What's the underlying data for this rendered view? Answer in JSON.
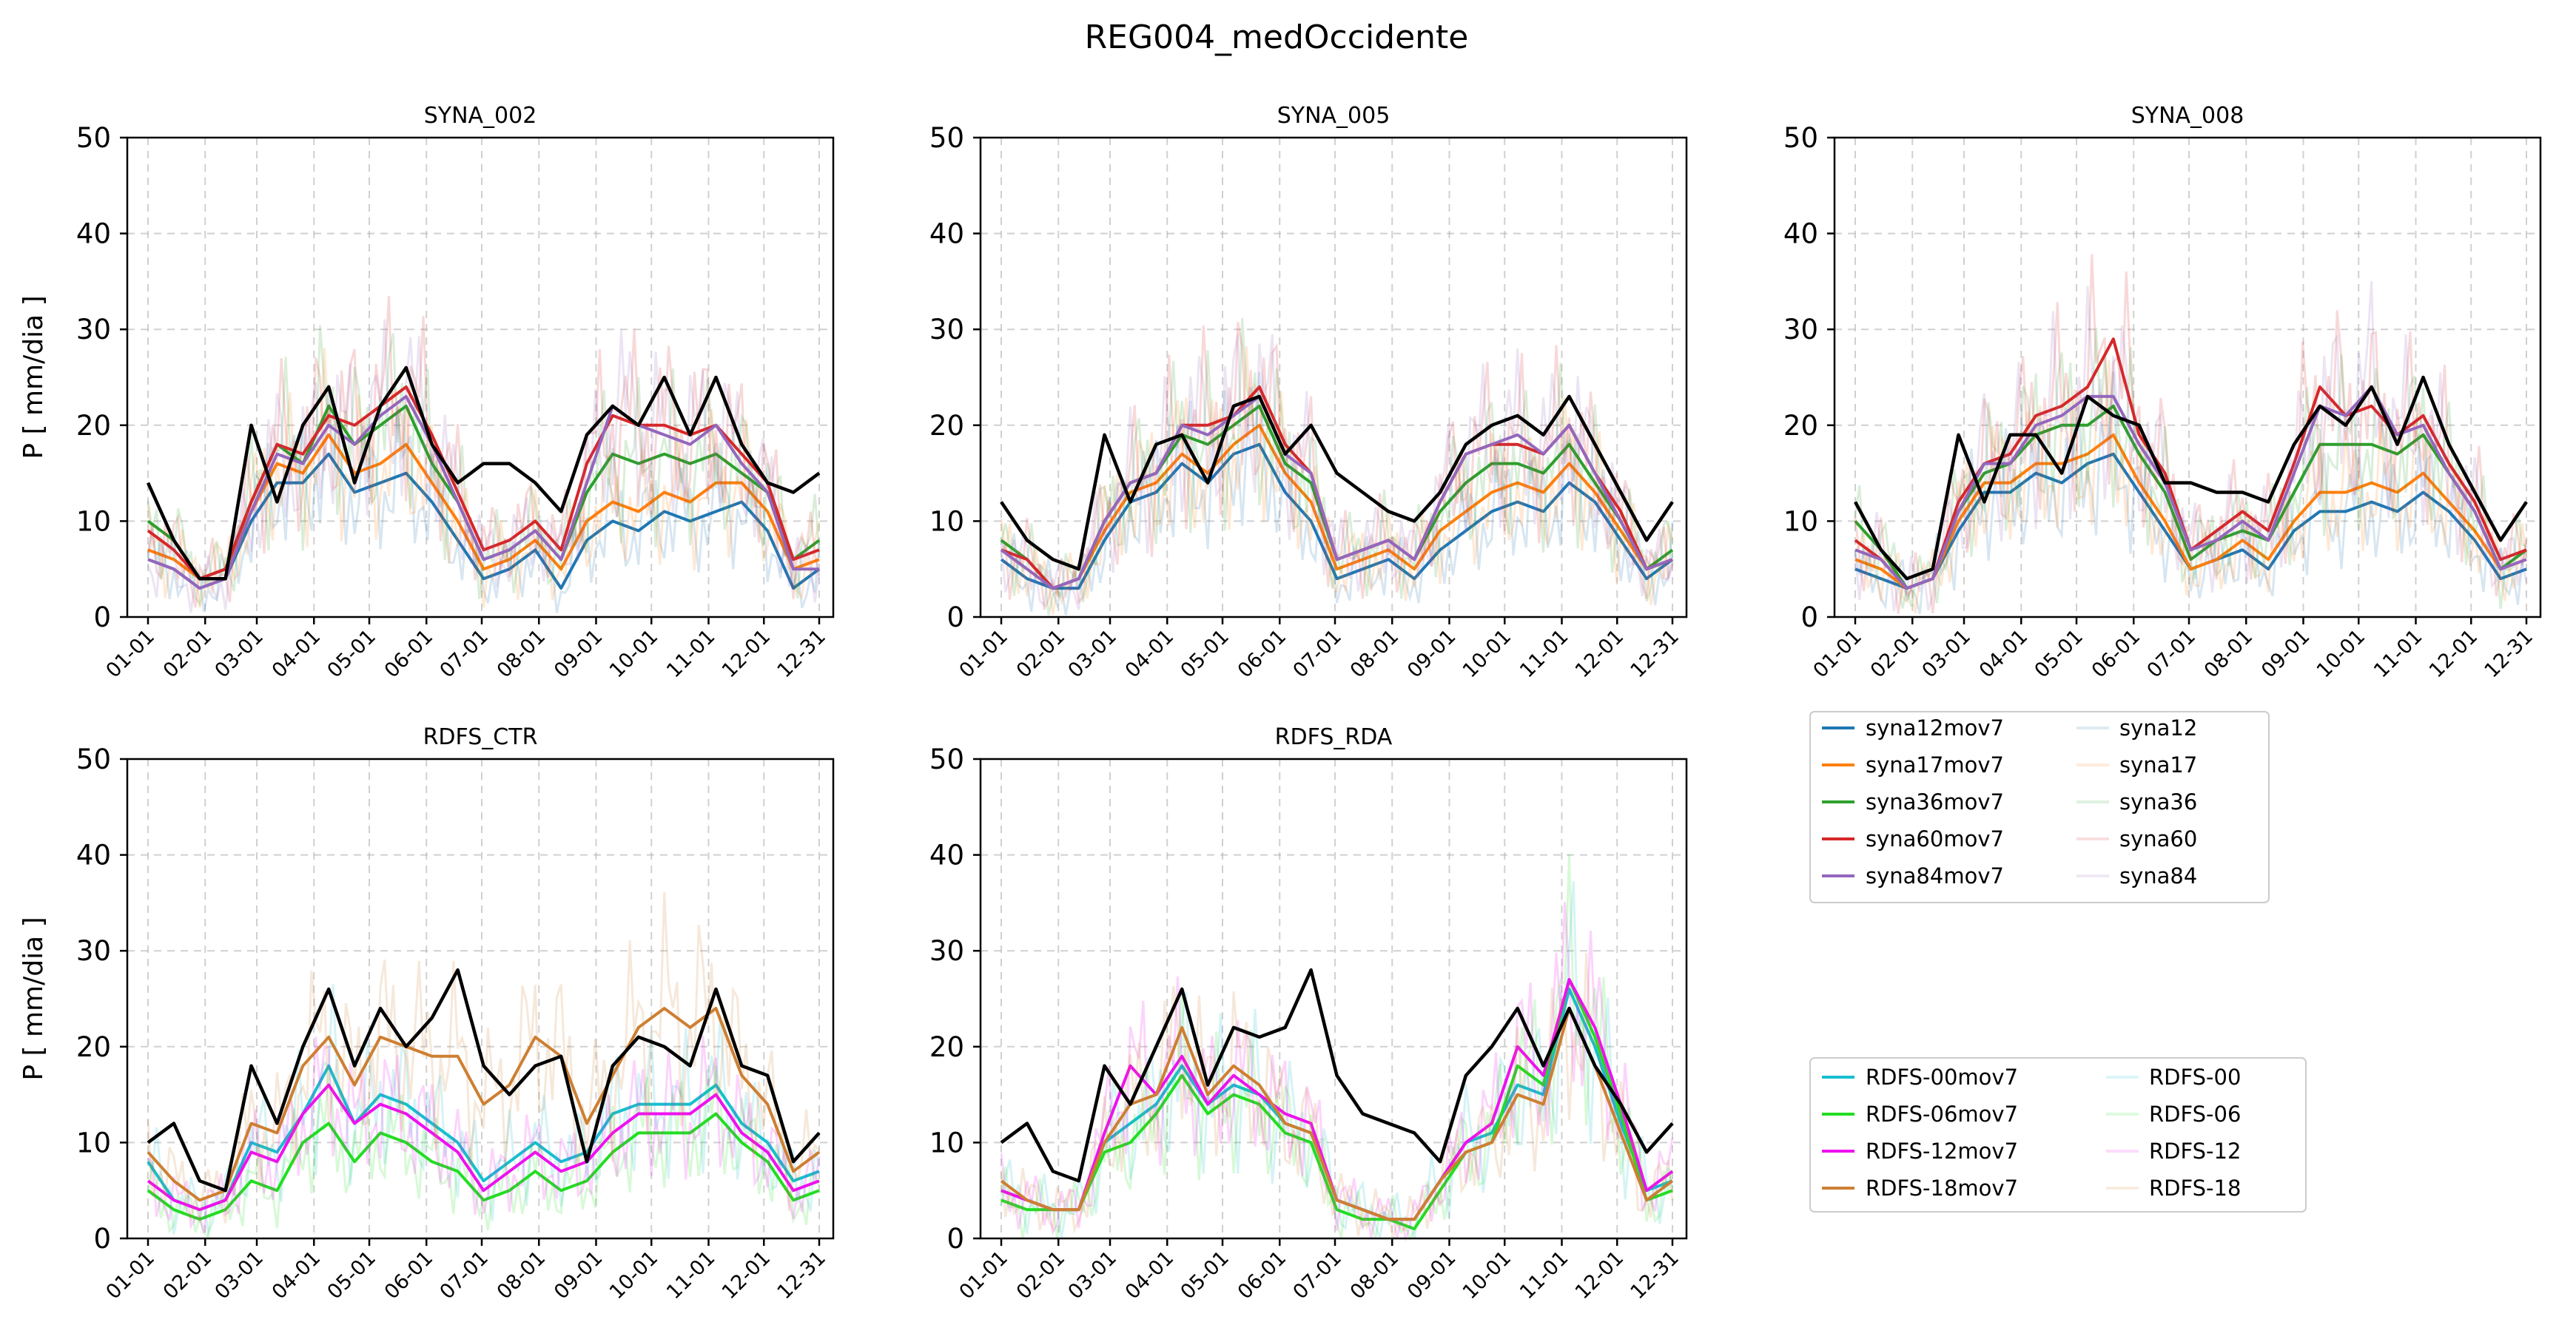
{
  "suptitle": "REG004_medOccidente",
  "axes": {
    "ylabel": "P [ mm/dia ]",
    "yticks": [
      "0",
      "10",
      "20",
      "30",
      "40",
      "50"
    ],
    "xticks": [
      "01-01",
      "02-01",
      "03-01",
      "04-01",
      "05-01",
      "06-01",
      "07-01",
      "08-01",
      "09-01",
      "10-01",
      "11-01",
      "12-01",
      "12-31"
    ]
  },
  "legend_syna": {
    "col1": [
      "syna12mov7",
      "syna17mov7",
      "syna36mov7",
      "syna60mov7",
      "syna84mov7"
    ],
    "col2": [
      "syna12",
      "syna17",
      "syna36",
      "syna60",
      "syna84"
    ]
  },
  "legend_rdfs": {
    "col1": [
      "RDFS-00mov7",
      "RDFS-06mov7",
      "RDFS-12mov7",
      "RDFS-18mov7"
    ],
    "col2": [
      "RDFS-00",
      "RDFS-06",
      "RDFS-12",
      "RDFS-18"
    ]
  },
  "chart_data": [
    {
      "type": "line",
      "title": "SYNA_002",
      "xlabel": "",
      "ylabel": "P [ mm/dia ]",
      "ylim": [
        0,
        50
      ],
      "x_range": [
        "01-01",
        "12-31"
      ],
      "grid": true,
      "colors": [
        "#1f77b4",
        "#ff7f0e",
        "#2ca02c",
        "#d62728",
        "#9467bd"
      ],
      "black_line": [
        14,
        8,
        4,
        4,
        20,
        12,
        20,
        24,
        14,
        22,
        26,
        18,
        14,
        16,
        16,
        14,
        11,
        19,
        22,
        20,
        25,
        19,
        25,
        18,
        14,
        13,
        15
      ],
      "series": [
        {
          "name": "syna12mov7",
          "values": [
            6,
            5,
            3,
            4,
            10,
            14,
            14,
            17,
            13,
            14,
            15,
            12,
            8,
            4,
            5,
            7,
            3,
            8,
            10,
            9,
            11,
            10,
            11,
            12,
            9,
            3,
            5
          ]
        },
        {
          "name": "syna17mov7",
          "values": [
            7,
            6,
            4,
            5,
            11,
            16,
            15,
            19,
            15,
            16,
            18,
            14,
            10,
            5,
            6,
            8,
            5,
            10,
            12,
            11,
            13,
            12,
            14,
            14,
            11,
            5,
            6
          ]
        },
        {
          "name": "syna36mov7",
          "values": [
            10,
            8,
            4,
            5,
            12,
            18,
            16,
            22,
            18,
            20,
            22,
            16,
            12,
            6,
            7,
            9,
            6,
            13,
            17,
            16,
            17,
            16,
            17,
            15,
            13,
            6,
            8
          ]
        },
        {
          "name": "syna60mov7",
          "values": [
            9,
            7,
            4,
            5,
            12,
            18,
            17,
            21,
            20,
            22,
            24,
            19,
            13,
            7,
            8,
            10,
            7,
            16,
            21,
            20,
            20,
            19,
            20,
            17,
            14,
            6,
            7
          ]
        },
        {
          "name": "syna84mov7",
          "values": [
            6,
            5,
            3,
            4,
            11,
            17,
            16,
            20,
            18,
            21,
            23,
            18,
            12,
            6,
            7,
            9,
            6,
            14,
            22,
            20,
            19,
            18,
            20,
            16,
            13,
            5,
            5
          ]
        }
      ]
    },
    {
      "type": "line",
      "title": "SYNA_005",
      "xlabel": "",
      "ylabel": "",
      "ylim": [
        0,
        50
      ],
      "x_range": [
        "01-01",
        "12-31"
      ],
      "grid": true,
      "colors": [
        "#1f77b4",
        "#ff7f0e",
        "#2ca02c",
        "#d62728",
        "#9467bd"
      ],
      "black_line": [
        12,
        8,
        6,
        5,
        19,
        12,
        18,
        19,
        14,
        22,
        23,
        17,
        20,
        15,
        13,
        11,
        10,
        13,
        18,
        20,
        21,
        19,
        23,
        18,
        13,
        8,
        12
      ],
      "series": [
        {
          "name": "syna12mov7",
          "values": [
            6,
            4,
            3,
            3,
            8,
            12,
            13,
            16,
            14,
            17,
            18,
            13,
            10,
            4,
            5,
            6,
            4,
            7,
            9,
            11,
            12,
            11,
            14,
            12,
            8,
            4,
            6
          ]
        },
        {
          "name": "syna17mov7",
          "values": [
            7,
            5,
            3,
            4,
            9,
            13,
            14,
            17,
            15,
            18,
            20,
            15,
            12,
            5,
            6,
            7,
            5,
            9,
            11,
            13,
            14,
            13,
            16,
            13,
            9,
            5,
            6
          ]
        },
        {
          "name": "syna36mov7",
          "values": [
            8,
            6,
            3,
            4,
            10,
            14,
            15,
            19,
            18,
            20,
            22,
            16,
            14,
            6,
            7,
            8,
            6,
            11,
            14,
            16,
            16,
            15,
            18,
            14,
            10,
            5,
            7
          ]
        },
        {
          "name": "syna60mov7",
          "values": [
            7,
            6,
            3,
            4,
            10,
            14,
            15,
            20,
            20,
            21,
            24,
            18,
            15,
            6,
            7,
            8,
            6,
            12,
            17,
            18,
            18,
            17,
            20,
            15,
            11,
            5,
            6
          ]
        },
        {
          "name": "syna84mov7",
          "values": [
            7,
            5,
            3,
            4,
            10,
            14,
            15,
            20,
            19,
            21,
            23,
            17,
            15,
            6,
            7,
            8,
            6,
            12,
            17,
            18,
            19,
            17,
            20,
            15,
            10,
            5,
            6
          ]
        }
      ]
    },
    {
      "type": "line",
      "title": "SYNA_008",
      "xlabel": "",
      "ylabel": "",
      "ylim": [
        0,
        50
      ],
      "x_range": [
        "01-01",
        "12-31"
      ],
      "grid": true,
      "colors": [
        "#1f77b4",
        "#ff7f0e",
        "#2ca02c",
        "#d62728",
        "#9467bd"
      ],
      "black_line": [
        12,
        7,
        4,
        5,
        19,
        12,
        19,
        19,
        15,
        23,
        21,
        20,
        14,
        14,
        13,
        13,
        12,
        18,
        22,
        20,
        24,
        18,
        25,
        18,
        13,
        8,
        12
      ],
      "series": [
        {
          "name": "syna12mov7",
          "values": [
            5,
            4,
            3,
            4,
            9,
            13,
            13,
            15,
            14,
            16,
            17,
            13,
            9,
            5,
            6,
            7,
            5,
            9,
            11,
            11,
            12,
            11,
            13,
            11,
            8,
            4,
            5
          ]
        },
        {
          "name": "syna17mov7",
          "values": [
            6,
            5,
            3,
            4,
            10,
            14,
            14,
            16,
            16,
            17,
            19,
            14,
            10,
            5,
            6,
            8,
            6,
            10,
            13,
            13,
            14,
            13,
            15,
            12,
            9,
            5,
            6
          ]
        },
        {
          "name": "syna36mov7",
          "values": [
            10,
            7,
            3,
            4,
            11,
            15,
            16,
            19,
            20,
            20,
            22,
            17,
            13,
            6,
            8,
            9,
            8,
            13,
            18,
            18,
            18,
            17,
            19,
            15,
            11,
            5,
            7
          ]
        },
        {
          "name": "syna60mov7",
          "values": [
            8,
            6,
            3,
            4,
            12,
            16,
            17,
            21,
            22,
            24,
            29,
            19,
            15,
            7,
            9,
            11,
            9,
            16,
            24,
            21,
            22,
            19,
            21,
            16,
            12,
            6,
            7
          ]
        },
        {
          "name": "syna84mov7",
          "values": [
            7,
            6,
            3,
            4,
            11,
            16,
            16,
            20,
            21,
            23,
            23,
            18,
            14,
            7,
            8,
            10,
            8,
            15,
            22,
            21,
            24,
            19,
            20,
            15,
            11,
            5,
            6
          ]
        }
      ]
    },
    {
      "type": "line",
      "title": "RDFS_CTR",
      "xlabel": "",
      "ylabel": "P [ mm/dia ]",
      "ylim": [
        0,
        50
      ],
      "x_range": [
        "01-01",
        "12-31"
      ],
      "grid": true,
      "colors": [
        "#17becf",
        "#22dd22",
        "#ee11ee",
        "#cd7f32"
      ],
      "black_line": [
        10,
        12,
        6,
        5,
        18,
        12,
        20,
        26,
        18,
        24,
        20,
        23,
        28,
        18,
        15,
        18,
        19,
        8,
        18,
        21,
        20,
        18,
        26,
        18,
        17,
        8,
        11
      ],
      "series": [
        {
          "name": "RDFS-00mov7",
          "values": [
            8,
            4,
            3,
            4,
            10,
            9,
            13,
            18,
            12,
            15,
            14,
            12,
            10,
            6,
            8,
            10,
            8,
            9,
            13,
            14,
            14,
            14,
            16,
            12,
            10,
            6,
            7
          ]
        },
        {
          "name": "RDFS-06mov7",
          "values": [
            5,
            3,
            2,
            3,
            6,
            5,
            10,
            12,
            8,
            11,
            10,
            8,
            7,
            4,
            5,
            7,
            5,
            6,
            9,
            11,
            11,
            11,
            13,
            10,
            8,
            4,
            5
          ]
        },
        {
          "name": "RDFS-12mov7",
          "values": [
            6,
            4,
            3,
            4,
            9,
            8,
            13,
            16,
            12,
            14,
            13,
            11,
            9,
            5,
            7,
            9,
            7,
            8,
            11,
            13,
            13,
            13,
            15,
            11,
            9,
            5,
            6
          ]
        },
        {
          "name": "RDFS-18mov7",
          "values": [
            9,
            6,
            4,
            5,
            12,
            11,
            18,
            21,
            16,
            21,
            20,
            19,
            19,
            14,
            16,
            21,
            19,
            12,
            17,
            22,
            24,
            22,
            24,
            17,
            14,
            7,
            9
          ]
        }
      ]
    },
    {
      "type": "line",
      "title": "RDFS_RDA",
      "xlabel": "",
      "ylabel": "",
      "ylim": [
        0,
        50
      ],
      "x_range": [
        "01-01",
        "12-31"
      ],
      "grid": true,
      "colors": [
        "#17becf",
        "#22dd22",
        "#ee11ee",
        "#cd7f32"
      ],
      "black_line": [
        10,
        12,
        7,
        6,
        18,
        14,
        20,
        26,
        16,
        22,
        21,
        22,
        28,
        17,
        13,
        12,
        11,
        8,
        17,
        20,
        24,
        18,
        24,
        18,
        14,
        9,
        12
      ],
      "series": [
        {
          "name": "RDFS-00mov7",
          "values": [
            5,
            4,
            3,
            3,
            10,
            12,
            14,
            18,
            14,
            16,
            15,
            12,
            11,
            4,
            3,
            2,
            2,
            6,
            10,
            11,
            16,
            15,
            26,
            20,
            12,
            5,
            6
          ]
        },
        {
          "name": "RDFS-06mov7",
          "values": [
            4,
            3,
            3,
            3,
            9,
            10,
            13,
            17,
            13,
            15,
            14,
            11,
            10,
            3,
            2,
            2,
            1,
            5,
            9,
            10,
            18,
            16,
            27,
            21,
            13,
            4,
            5
          ]
        },
        {
          "name": "RDFS-12mov7",
          "values": [
            5,
            4,
            3,
            3,
            11,
            18,
            15,
            19,
            14,
            17,
            15,
            13,
            12,
            4,
            3,
            2,
            2,
            6,
            10,
            12,
            20,
            17,
            27,
            22,
            14,
            5,
            7
          ]
        },
        {
          "name": "RDFS-18mov7",
          "values": [
            6,
            4,
            3,
            3,
            10,
            14,
            15,
            22,
            15,
            18,
            16,
            12,
            11,
            4,
            3,
            2,
            2,
            6,
            9,
            10,
            15,
            14,
            24,
            18,
            11,
            4,
            6
          ]
        }
      ]
    }
  ]
}
